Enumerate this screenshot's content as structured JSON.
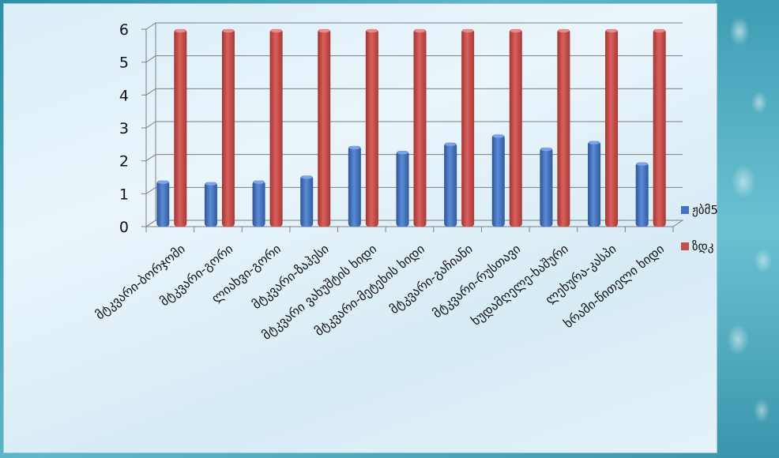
{
  "chart_data": {
    "type": "bar",
    "categories": [
      "მტკვარი-ბორჯომი",
      "მტკვარი-გორი",
      "ლიახვი-გორი",
      "მტკვარი-ზაჰესი",
      "მტკვარი ვახუშტის ხიდი",
      "მტკვარი-მეტეხის ხიდი",
      "მტკვარი-გაჩიანი",
      "მტკვარი-რუსთავი",
      "ხუდამღელე-ხაშური",
      "ლეხურა-კასპი",
      "ხრამი-წითელი ხიდი"
    ],
    "series": [
      {
        "name": "ჟბმ5",
        "color": "#4472c4",
        "values": [
          1.4,
          1.35,
          1.4,
          1.55,
          2.45,
          2.3,
          2.55,
          2.8,
          2.4,
          2.6,
          1.95
        ]
      },
      {
        "name": "ზდკ",
        "color": "#c0504d",
        "values": [
          6,
          6,
          6,
          6,
          6,
          6,
          6,
          6,
          6,
          6,
          6
        ]
      }
    ],
    "yticks": [
      "0",
      "1",
      "2",
      "3",
      "4",
      "5",
      "6"
    ],
    "ylim": [
      0,
      6
    ],
    "grid": true,
    "legend_position": "right",
    "title": "",
    "xlabel": "",
    "ylabel": ""
  }
}
